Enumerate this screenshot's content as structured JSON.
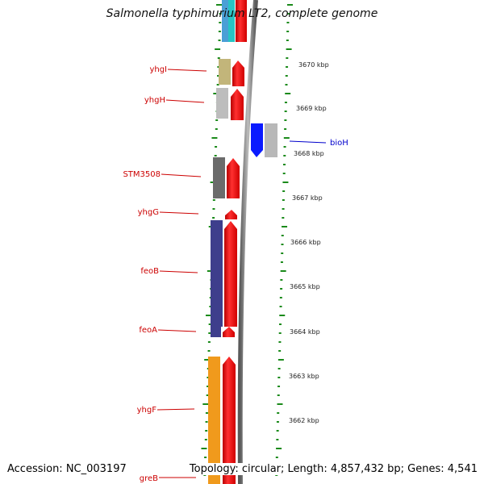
{
  "title": "Salmonella typhimurium LT2, complete genome",
  "footer": {
    "accession": "Accession: NC_003197",
    "topology": "Topology: circular; Length: 4,857,432 bp; Genes: 4,541"
  },
  "ruler": {
    "unit": "kbp",
    "labels": [
      "3670 kbp",
      "3669 kbp",
      "3668 kbp",
      "3667 kbp",
      "3666 kbp",
      "3665 kbp",
      "3664 kbp",
      "3663 kbp",
      "3662 kbp"
    ]
  },
  "genes_reverse": [
    {
      "name": "yhgI",
      "color": "#c2b57a"
    },
    {
      "name": "yhgH",
      "color": "#bdbdbd"
    },
    {
      "name": "STM3508",
      "color": "#6b6b6b"
    },
    {
      "name": "yhgG",
      "color": "#3e3e8c"
    },
    {
      "name": "feoB",
      "color": "#3e3e8c"
    },
    {
      "name": "feoA",
      "color": "#3e3e8c"
    },
    {
      "name": "yhgF",
      "color": "#f09a1c"
    },
    {
      "name": "greB",
      "color": "#f09a1c"
    }
  ],
  "genes_forward": [
    {
      "name": "bioH",
      "color": "#0a1aff"
    }
  ],
  "colors": {
    "cds_track": "#ff1010",
    "ticks": "#1a8a1a",
    "backbone": "#8c8c8c",
    "label_line_red": "#cc0000",
    "label_line_blue": "#0000cc"
  }
}
